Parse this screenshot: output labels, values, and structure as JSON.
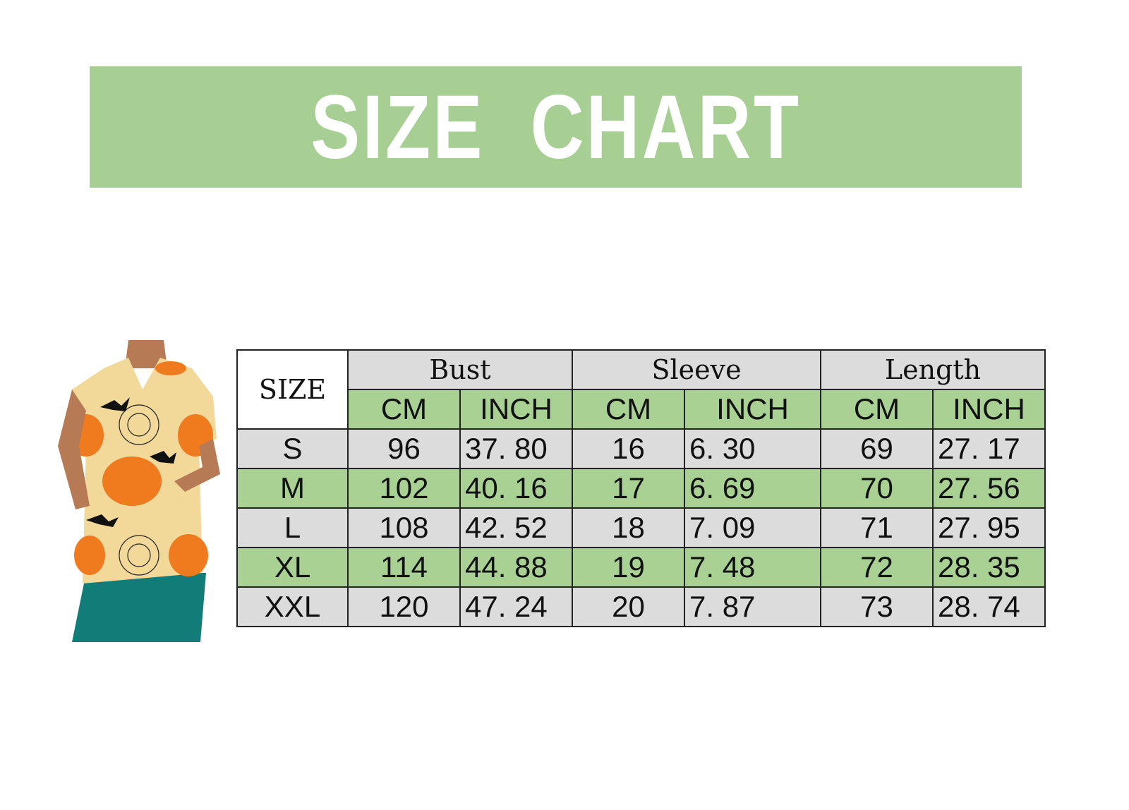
{
  "title": "SIZE  CHART",
  "colors": {
    "banner": "#a8cf93",
    "green_row": "#a8d193",
    "grey_row": "#dcdcdc"
  },
  "product_image": "halloween-pumpkin-print-scrub-top",
  "chart_data": {
    "type": "table",
    "title": "SIZE  CHART",
    "size_header": "SIZE",
    "groups": [
      "Bust",
      "Sleeve",
      "Length"
    ],
    "units": [
      "CM",
      "INCH",
      "CM",
      "INCH",
      "CM",
      "INCH"
    ],
    "rows": [
      {
        "size": "S",
        "values": [
          "96",
          "37. 80",
          "16",
          "6. 30",
          "69",
          "27. 17"
        ]
      },
      {
        "size": "M",
        "values": [
          "102",
          "40. 16",
          "17",
          "6. 69",
          "70",
          "27. 56"
        ]
      },
      {
        "size": "L",
        "values": [
          "108",
          "42. 52",
          "18",
          "7. 09",
          "71",
          "27. 95"
        ]
      },
      {
        "size": "XL",
        "values": [
          "114",
          "44. 88",
          "19",
          "7. 48",
          "72",
          "28. 35"
        ]
      },
      {
        "size": "XXL",
        "values": [
          "120",
          "47. 24",
          "20",
          "7. 87",
          "73",
          "28. 74"
        ]
      }
    ]
  }
}
